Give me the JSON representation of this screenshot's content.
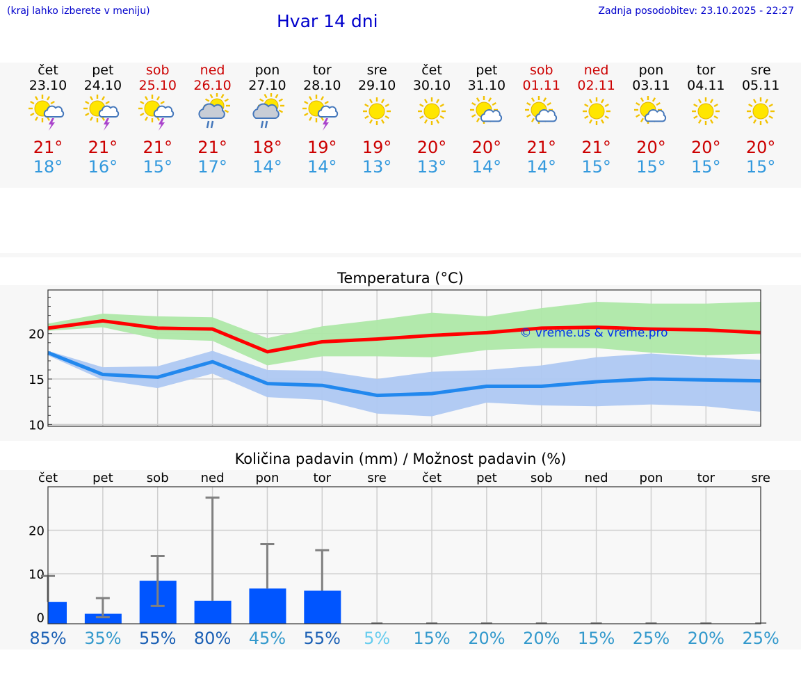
{
  "header": {
    "hint": "(kraj lahko izberete v meniju)",
    "title": "Hvar 14 dni",
    "updated": "Zadnja posodobitev: 23.10.2025 - 22:27"
  },
  "days": [
    {
      "name": "čet",
      "date": "23.10",
      "weekend": false,
      "icon": "sun-thunderstorm-icon",
      "tmax": "21°",
      "tmin": "18°",
      "prob": "85%",
      "prob_color": "#1a5fb4"
    },
    {
      "name": "pet",
      "date": "24.10",
      "weekend": false,
      "icon": "sun-thunderstorm-icon",
      "tmax": "21°",
      "tmin": "16°",
      "prob": "35%",
      "prob_color": "#3399cc"
    },
    {
      "name": "sob",
      "date": "25.10",
      "weekend": true,
      "icon": "sun-thunderstorm-icon",
      "tmax": "21°",
      "tmin": "15°",
      "prob": "55%",
      "prob_color": "#1a5fb4"
    },
    {
      "name": "ned",
      "date": "26.10",
      "weekend": true,
      "icon": "sun-cloud-rain-icon",
      "tmax": "21°",
      "tmin": "17°",
      "prob": "80%",
      "prob_color": "#1a5fb4"
    },
    {
      "name": "pon",
      "date": "27.10",
      "weekend": false,
      "icon": "sun-cloud-rain-icon",
      "tmax": "18°",
      "tmin": "14°",
      "prob": "45%",
      "prob_color": "#3399cc"
    },
    {
      "name": "tor",
      "date": "28.10",
      "weekend": false,
      "icon": "sun-thunderstorm-icon",
      "tmax": "19°",
      "tmin": "14°",
      "prob": "55%",
      "prob_color": "#1a5fb4"
    },
    {
      "name": "sre",
      "date": "29.10",
      "weekend": false,
      "icon": "sun-icon",
      "tmax": "19°",
      "tmin": "13°",
      "prob": "5%",
      "prob_color": "#66ccee"
    },
    {
      "name": "čet",
      "date": "30.10",
      "weekend": false,
      "icon": "sun-icon",
      "tmax": "20°",
      "tmin": "13°",
      "prob": "15%",
      "prob_color": "#3399cc"
    },
    {
      "name": "pet",
      "date": "31.10",
      "weekend": false,
      "icon": "sun-cloud-icon",
      "tmax": "20°",
      "tmin": "14°",
      "prob": "20%",
      "prob_color": "#3399cc"
    },
    {
      "name": "sob",
      "date": "01.11",
      "weekend": true,
      "icon": "sun-cloud-icon",
      "tmax": "21°",
      "tmin": "14°",
      "prob": "20%",
      "prob_color": "#3399cc"
    },
    {
      "name": "ned",
      "date": "02.11",
      "weekend": true,
      "icon": "sun-icon",
      "tmax": "21°",
      "tmin": "15°",
      "prob": "15%",
      "prob_color": "#3399cc"
    },
    {
      "name": "pon",
      "date": "03.11",
      "weekend": false,
      "icon": "sun-cloud-icon",
      "tmax": "20°",
      "tmin": "15°",
      "prob": "25%",
      "prob_color": "#3399cc"
    },
    {
      "name": "tor",
      "date": "04.11",
      "weekend": false,
      "icon": "sun-icon",
      "tmax": "20°",
      "tmin": "15°",
      "prob": "20%",
      "prob_color": "#3399cc"
    },
    {
      "name": "sre",
      "date": "05.11",
      "weekend": false,
      "icon": "sun-icon",
      "tmax": "20°",
      "tmin": "15°",
      "prob": "25%",
      "prob_color": "#3399cc"
    }
  ],
  "chart_data": [
    {
      "type": "line",
      "title": "Temperatura (°C)",
      "annotation": "© vreme.us & vreme.pro",
      "x": [
        "23.10",
        "24.10",
        "25.10",
        "26.10",
        "27.10",
        "28.10",
        "29.10",
        "30.10",
        "31.10",
        "01.11",
        "02.11",
        "03.11",
        "04.11",
        "05.11"
      ],
      "ylim": [
        9.8,
        24.8
      ],
      "yticks": [
        10,
        15,
        20
      ],
      "grid": true,
      "series": [
        {
          "role": "max",
          "color": "#ff0000",
          "values": [
            20.6,
            21.4,
            20.6,
            20.5,
            18.0,
            19.1,
            19.4,
            19.8,
            20.1,
            20.6,
            20.7,
            20.5,
            20.4,
            20.1
          ]
        },
        {
          "role": "min",
          "color": "#2288ee",
          "values": [
            17.9,
            15.5,
            15.2,
            16.9,
            14.5,
            14.3,
            13.2,
            13.4,
            14.2,
            14.2,
            14.7,
            15.0,
            14.9,
            14.8
          ]
        }
      ],
      "bands": [
        {
          "role": "max-range",
          "color": "#aee8a8",
          "upper": [
            21.1,
            22.2,
            21.9,
            21.8,
            19.5,
            20.8,
            21.5,
            22.3,
            21.9,
            22.8,
            23.5,
            23.3,
            23.3,
            23.5
          ],
          "lower": [
            20.3,
            20.7,
            19.4,
            19.2,
            16.5,
            17.5,
            17.5,
            17.4,
            18.2,
            18.4,
            18.4,
            17.9,
            17.6,
            17.8
          ]
        },
        {
          "role": "min-range",
          "color": "#aec8f2",
          "upper": [
            18.1,
            16.3,
            16.4,
            18.1,
            16.0,
            15.9,
            15.0,
            15.8,
            16.0,
            16.5,
            17.4,
            17.8,
            17.4,
            17.1
          ],
          "lower": [
            17.6,
            14.9,
            14.0,
            15.6,
            13.0,
            12.7,
            11.2,
            10.9,
            12.4,
            12.1,
            12.0,
            12.2,
            12.0,
            11.4
          ]
        }
      ]
    },
    {
      "type": "bar",
      "title": "Količina padavin (mm) / Možnost padavin (%)",
      "categories": [
        "čet",
        "pet",
        "sob",
        "ned",
        "pon",
        "tor",
        "sre",
        "čet",
        "pet",
        "sob",
        "ned",
        "pon",
        "tor",
        "sre"
      ],
      "values": [
        3.5,
        0.8,
        8.4,
        3.8,
        6.6,
        6.1,
        0,
        0,
        0,
        0,
        0,
        0,
        0,
        0
      ],
      "error_low": [
        3.5,
        0,
        2.6,
        3.8,
        6.6,
        6.1,
        0,
        0,
        0,
        0,
        0,
        0,
        0,
        0
      ],
      "error_high": [
        9.5,
        4.4,
        14.1,
        27.5,
        16.8,
        15.4,
        0,
        0,
        0,
        0,
        0,
        0,
        0,
        0
      ],
      "ylim": [
        -1.5,
        30
      ],
      "yticks": [
        0,
        10,
        20
      ],
      "bar_color": "#0055ff",
      "error_color": "#808080",
      "probabilities": [
        "85%",
        "35%",
        "55%",
        "80%",
        "45%",
        "55%",
        "5%",
        "15%",
        "20%",
        "20%",
        "15%",
        "25%",
        "20%",
        "25%"
      ],
      "grid": true
    }
  ]
}
